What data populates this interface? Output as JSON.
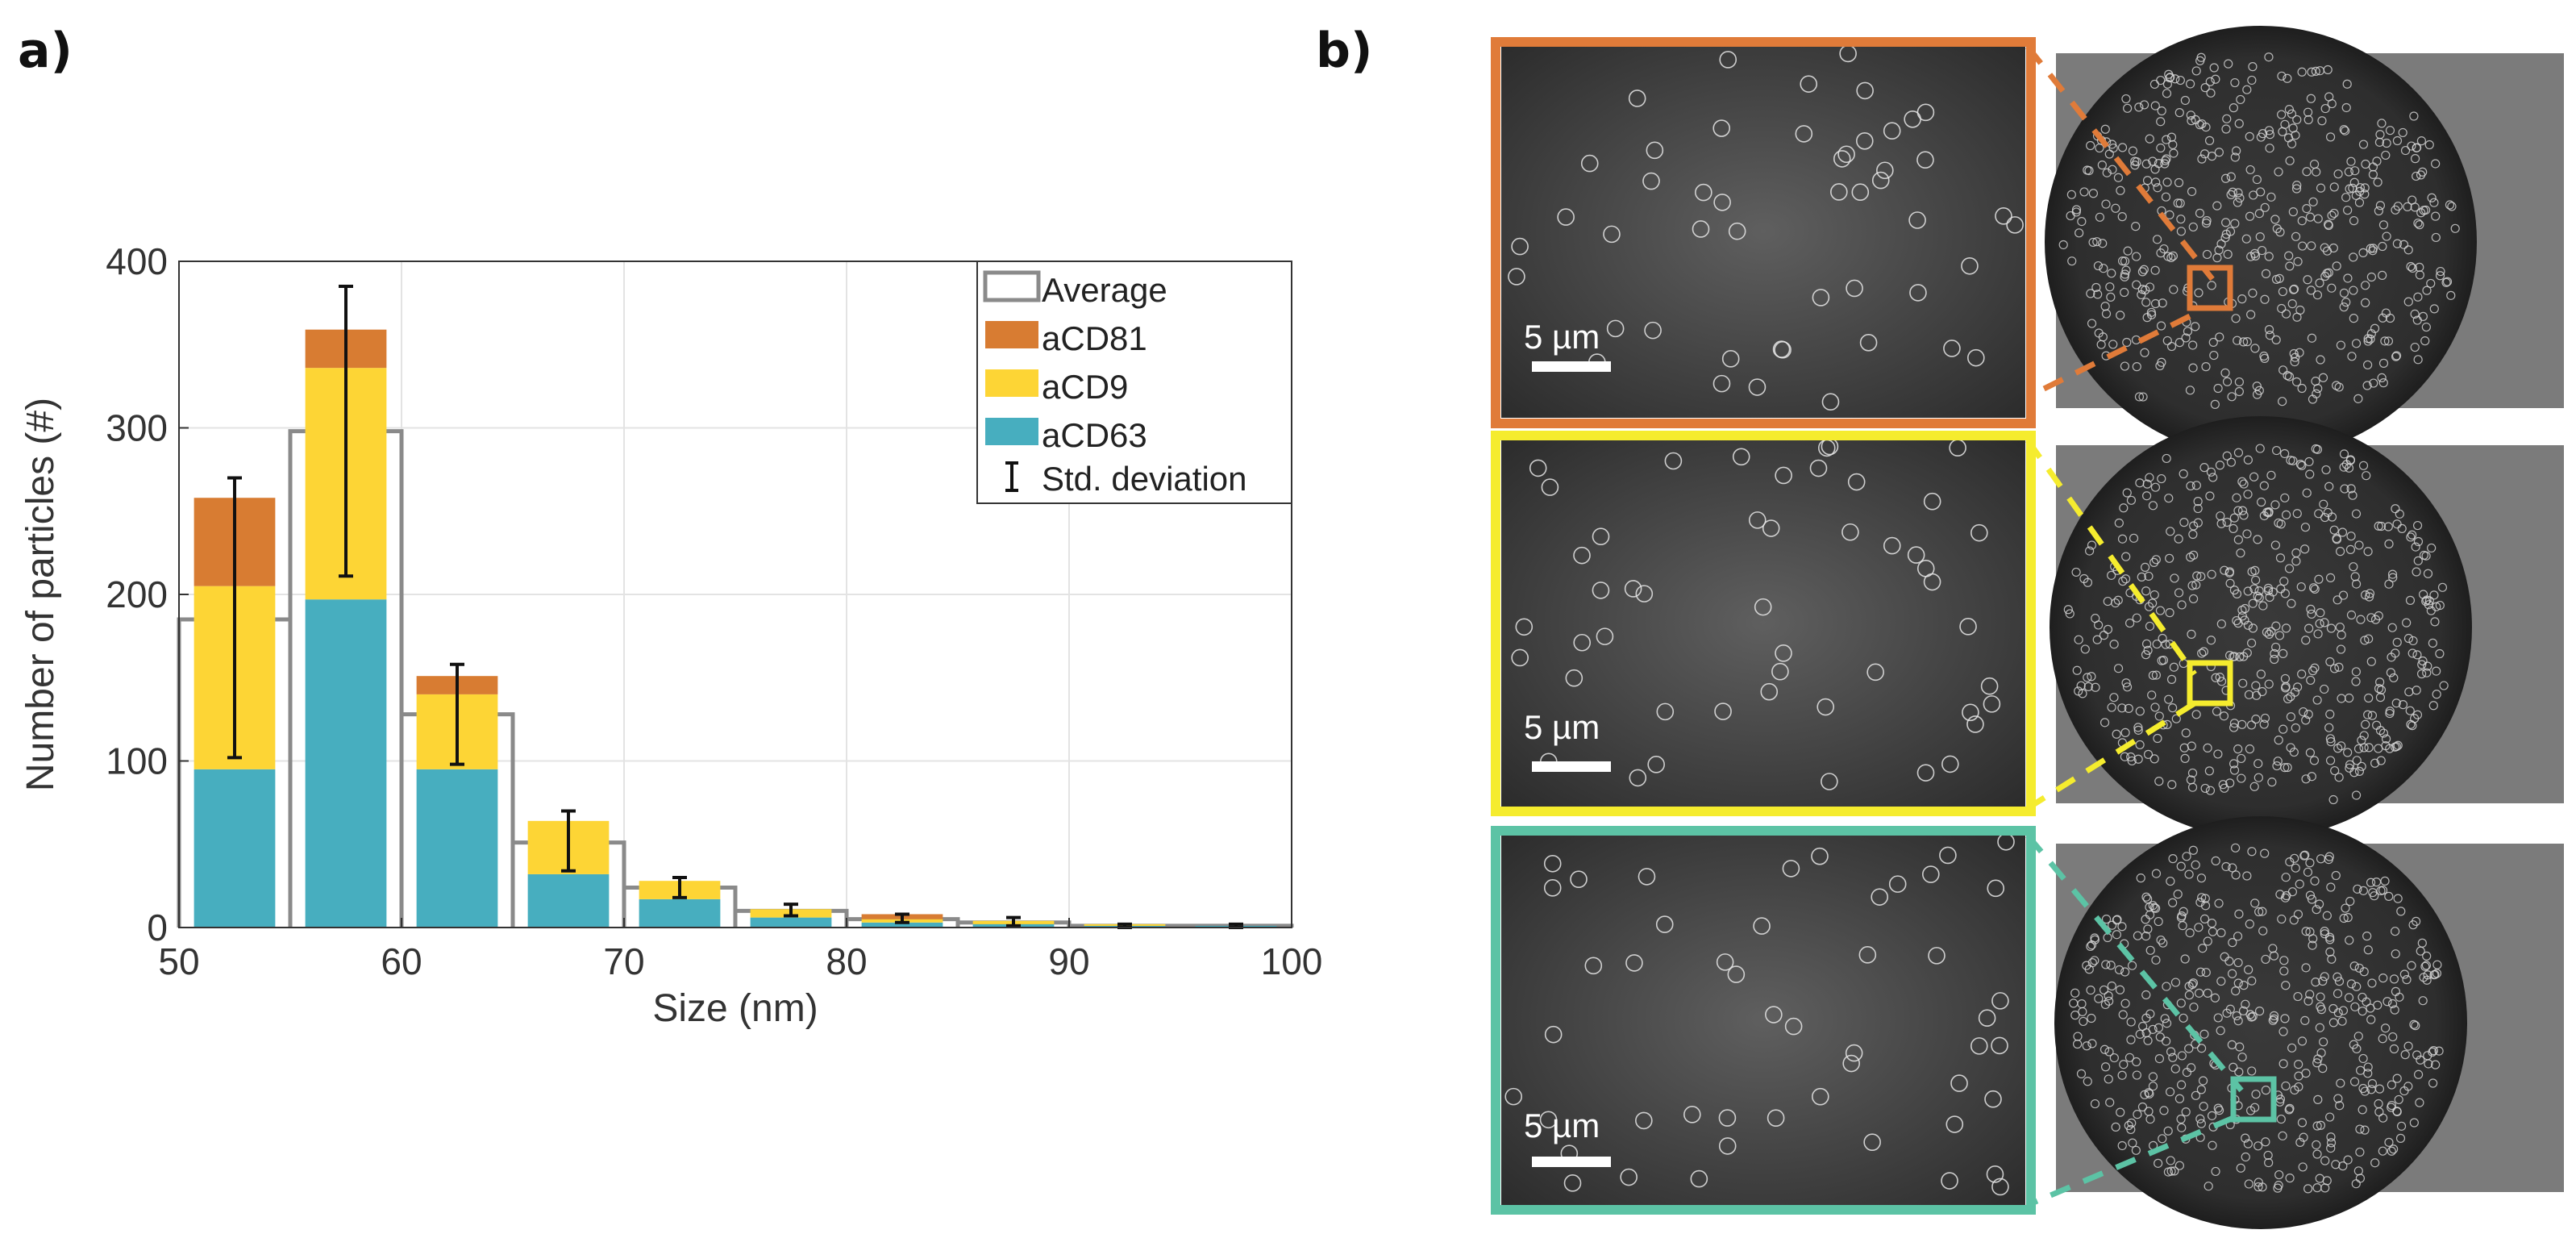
{
  "figure": {
    "panel_a_label": "a)",
    "panel_b_label": "b)"
  },
  "colors": {
    "aCD81": "#d87c32",
    "aCD9": "#fdd535",
    "aCD63": "#47aebf",
    "average_outline": "#8a8a8a",
    "frame_orange": "#e07b39",
    "frame_yellow": "#f5ec2e",
    "frame_teal": "#5cc3a5"
  },
  "chart_data": {
    "type": "bar",
    "stacked": true,
    "categories": [
      52.5,
      57.5,
      62.5,
      67.5,
      72.5,
      77.5,
      82.5,
      87.5,
      92.5,
      97.5
    ],
    "bin_width": 5,
    "series": [
      {
        "name": "aCD63",
        "values": [
          95,
          197,
          95,
          32,
          17,
          6,
          3,
          2,
          1,
          1
        ]
      },
      {
        "name": "aCD9",
        "values": [
          110,
          139,
          45,
          32,
          11,
          5,
          2,
          2,
          1,
          0
        ]
      },
      {
        "name": "aCD81",
        "values": [
          53,
          23,
          11,
          0,
          0,
          0,
          3,
          0,
          0,
          0
        ]
      }
    ],
    "average": [
      185,
      298,
      128,
      51,
      24,
      10,
      5,
      3,
      1,
      1
    ],
    "error_bars": {
      "center": [
        185,
        298,
        128,
        51,
        24,
        10,
        5,
        3,
        1,
        1
      ],
      "low": [
        102,
        211,
        98,
        34,
        18,
        7,
        3,
        1,
        0,
        0
      ],
      "high": [
        270,
        385,
        158,
        70,
        30,
        14,
        8,
        6,
        2,
        2
      ]
    },
    "title": "",
    "xlabel": "Size (nm)",
    "ylabel": "Number of particles (#)",
    "xlim": [
      50,
      100
    ],
    "ylim": [
      0,
      400
    ],
    "xticks": [
      50,
      60,
      70,
      80,
      90,
      100
    ],
    "yticks": [
      0,
      100,
      200,
      300,
      400
    ],
    "grid": true,
    "legend_position": "top-right",
    "legend": [
      "Average",
      "aCD81",
      "aCD9",
      "aCD63",
      "Std. deviation"
    ]
  },
  "panel_b": {
    "scale_bar_label": "5 µm",
    "rows": [
      {
        "name": "orange",
        "color_key": "frame_orange"
      },
      {
        "name": "yellow",
        "color_key": "frame_yellow"
      },
      {
        "name": "teal",
        "color_key": "frame_teal"
      }
    ]
  }
}
